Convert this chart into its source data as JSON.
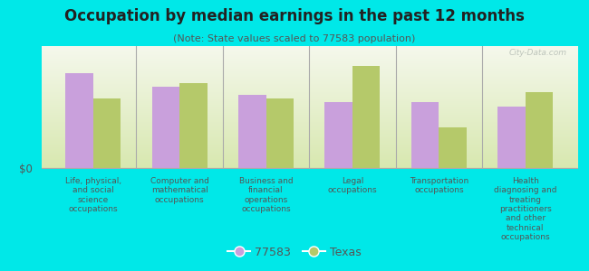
{
  "title": "Occupation by median earnings in the past 12 months",
  "subtitle": "(Note: State values scaled to 77583 population)",
  "background_color": "#00e8e8",
  "plot_bg_top": "#f5f8ec",
  "plot_bg_bottom": "#d8e8b0",
  "categories": [
    "Life, physical,\nand social\nscience\noccupations",
    "Computer and\nmathematical\noccupations",
    "Business and\nfinancial\noperations\noccupations",
    "Legal\noccupations",
    "Transportation\noccupations",
    "Health\ndiagnosing and\ntreating\npractitioners\nand other\ntechnical\noccupations"
  ],
  "values_77583": [
    0.82,
    0.7,
    0.63,
    0.57,
    0.57,
    0.53
  ],
  "values_texas": [
    0.6,
    0.73,
    0.6,
    0.88,
    0.35,
    0.65
  ],
  "color_77583": "#c9a0dc",
  "color_texas": "#b5c96a",
  "ylabel": "$0",
  "legend_77583": "77583",
  "legend_texas": "Texas",
  "watermark": "City-Data.com",
  "bar_width": 0.32,
  "ylim": [
    0,
    1.0
  ],
  "title_fontsize": 12,
  "subtitle_fontsize": 8,
  "tick_fontsize": 6.5
}
